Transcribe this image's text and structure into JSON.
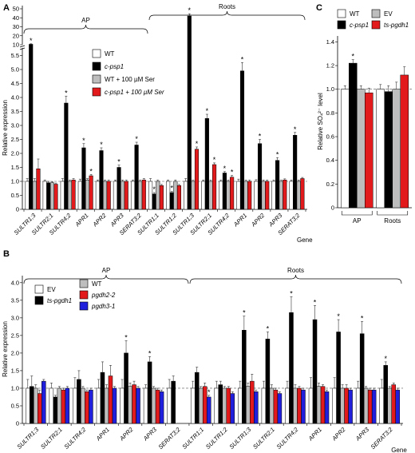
{
  "chart_data": [
    {
      "panel": "A",
      "type": "bar",
      "ylabel": "Relative expression",
      "xlabel": "Gene",
      "y_ticks_lower": [
        "0",
        "0.5",
        "1.0",
        "1.5",
        "2.0",
        "2.5",
        "3.0",
        "3.5",
        "4.0",
        "4.5",
        "5.0",
        "5.5"
      ],
      "y_ticks_upper": [
        "10",
        "20",
        "30",
        "40",
        "50"
      ],
      "y_break": [
        5.6,
        10
      ],
      "groups": [
        {
          "label": "AP",
          "categories": [
            "SULTR1;3",
            "SULTR2;1",
            "SULTR4;2",
            "APR1",
            "APR2",
            "APR3",
            "SERAT3;2"
          ]
        },
        {
          "label": "Roots",
          "categories": [
            "SULTR1;1",
            "SULTR1;2",
            "SULTR1;3",
            "SULTR2;1",
            "SULTR4;2",
            "APR1",
            "APR2",
            "APR3",
            "SERAT3;2"
          ]
        }
      ],
      "series": [
        {
          "name": "WT",
          "color": "#ffffff",
          "values": [
            1.0,
            1.0,
            1.0,
            1.0,
            1.0,
            1.0,
            1.0,
            1.0,
            1.0,
            1.0,
            1.0,
            1.0,
            1.0,
            1.0,
            1.0,
            1.0
          ],
          "errors": [
            0.1,
            0.05,
            0.1,
            0.08,
            0.05,
            0.05,
            0.05,
            0.1,
            0.05,
            0.1,
            0.05,
            0.05,
            0.08,
            0.06,
            0.05,
            0.05
          ]
        },
        {
          "name": "c-psp1",
          "color": "#000000",
          "values": [
            10.5,
            0.95,
            3.8,
            2.2,
            2.1,
            1.5,
            2.3,
            0.55,
            0.6,
            42,
            3.25,
            1.3,
            4.95,
            2.35,
            1.75,
            2.65
          ],
          "errors": [
            0.6,
            0.05,
            0.25,
            0.15,
            0.1,
            0.08,
            0.1,
            0.05,
            0.04,
            2.5,
            0.15,
            0.05,
            0.3,
            0.15,
            0.1,
            0.1
          ],
          "significant": [
            true,
            false,
            true,
            true,
            true,
            true,
            true,
            true,
            true,
            true,
            true,
            true,
            true,
            true,
            true,
            true
          ]
        },
        {
          "name": "WT + 100 µM Ser",
          "color": "#bdbdbd",
          "values": [
            1.0,
            0.95,
            1.0,
            1.05,
            1.0,
            1.0,
            1.0,
            1.0,
            1.0,
            1.0,
            1.0,
            1.0,
            1.0,
            1.0,
            1.0,
            1.0
          ],
          "errors": [
            0.1,
            0.04,
            0.05,
            0.05,
            0.05,
            0.05,
            0.05,
            0.05,
            0.05,
            0.05,
            0.05,
            0.05,
            0.05,
            0.05,
            0.05,
            0.05
          ]
        },
        {
          "name": "c-psp1 + 100 µM Ser",
          "color": "#e31a1c",
          "values": [
            1.45,
            0.9,
            1.05,
            1.2,
            1.0,
            1.0,
            1.05,
            0.85,
            0.85,
            2.15,
            1.6,
            1.15,
            1.0,
            1.0,
            1.05,
            1.1
          ],
          "errors": [
            0.35,
            0.04,
            0.05,
            0.05,
            0.05,
            0.05,
            0.05,
            0.04,
            0.04,
            0.08,
            0.06,
            0.06,
            0.05,
            0.05,
            0.04,
            0.04
          ],
          "significant": [
            false,
            false,
            false,
            true,
            false,
            false,
            false,
            false,
            false,
            true,
            true,
            true,
            false,
            false,
            false,
            false
          ]
        }
      ]
    },
    {
      "panel": "B",
      "type": "bar",
      "ylabel": "Relative expression",
      "xlabel": "Gene",
      "ylim": [
        0,
        4.2
      ],
      "y_ticks": [
        "0",
        "0.5",
        "1.0",
        "1.5",
        "2.0",
        "2.5",
        "3.0",
        "3.5",
        "4.0"
      ],
      "groups": [
        {
          "label": "AP",
          "categories": [
            "SULTR1;3",
            "SULTR2;1",
            "SULTR4;2",
            "APR1",
            "APR2",
            "APR3",
            "SERAT3;2"
          ]
        },
        {
          "label": "Roots",
          "categories": [
            "SULTR1;1",
            "SULTR1;2",
            "SULTR1;3",
            "SULTR2;1",
            "SULTR4;2",
            "APR1",
            "APR2",
            "APR3",
            "SERAT3;2"
          ]
        }
      ],
      "series": [
        {
          "name": "EV",
          "color": "#ffffff",
          "values": [
            1.0,
            1.0,
            1.0,
            1.0,
            1.0,
            1.0,
            1.0,
            1.0,
            1.0,
            1.0,
            1.0,
            1.0,
            1.0,
            1.0,
            1.0,
            1.0
          ],
          "errors": [
            0.25,
            0.15,
            0.3,
            0.25,
            0.25,
            0.1,
            0.25,
            0.2,
            0.2,
            0.2,
            0.2,
            0.2,
            0.3,
            0.3,
            0.2,
            0.25
          ]
        },
        {
          "name": "ts-pgdh1",
          "color": "#000000",
          "values": [
            1.05,
            0.75,
            1.25,
            1.45,
            2.0,
            1.75,
            1.2,
            1.45,
            1.1,
            2.65,
            2.4,
            3.15,
            2.95,
            2.6,
            2.55,
            1.65
          ],
          "errors": [
            0.3,
            0.05,
            0.25,
            0.3,
            0.35,
            0.15,
            0.15,
            0.15,
            0.1,
            0.4,
            0.2,
            0.45,
            0.4,
            0.35,
            0.35,
            0.1
          ],
          "significant": [
            false,
            false,
            false,
            false,
            true,
            true,
            false,
            false,
            false,
            true,
            true,
            true,
            true,
            true,
            true,
            true
          ]
        },
        {
          "name": "WT",
          "color": "#bdbdbd",
          "values": [
            1.0,
            1.0,
            1.0,
            1.0,
            1.05,
            1.0,
            null,
            1.0,
            1.0,
            1.05,
            1.0,
            1.0,
            1.05,
            1.0,
            1.0,
            1.0
          ],
          "errors": [
            0.1,
            0.05,
            0.05,
            0.1,
            0.1,
            0.05,
            0,
            0.05,
            0.05,
            0.1,
            0.1,
            0.1,
            0.1,
            0.1,
            0.05,
            0.05
          ]
        },
        {
          "name": "pgdh2-2",
          "color": "#e31a1c",
          "values": [
            0.85,
            0.95,
            0.9,
            1.35,
            1.1,
            0.95,
            null,
            1.05,
            1.0,
            1.2,
            0.95,
            1.0,
            1.05,
            1.0,
            0.95,
            1.1
          ],
          "errors": [
            0.1,
            0.05,
            0.05,
            0.3,
            0.1,
            0.05,
            0,
            0.1,
            0.05,
            0.2,
            0.05,
            0.05,
            0.05,
            0.1,
            0.05,
            0.05
          ]
        },
        {
          "name": "pgdh3-1",
          "color": "#1f1fdc",
          "values": [
            1.2,
            1.0,
            0.95,
            1.0,
            1.0,
            0.9,
            null,
            0.75,
            0.85,
            0.9,
            0.85,
            0.95,
            0.9,
            0.95,
            0.95,
            0.95
          ],
          "errors": [
            0.05,
            0.05,
            0.05,
            0.05,
            0.05,
            0.05,
            0,
            0.05,
            0.05,
            0.05,
            0.05,
            0.05,
            0.05,
            0.05,
            0.05,
            0.05
          ],
          "significant": [
            false,
            false,
            false,
            false,
            false,
            false,
            false,
            true,
            false,
            false,
            false,
            false,
            false,
            false,
            false,
            false
          ]
        }
      ]
    },
    {
      "panel": "C",
      "type": "bar",
      "ylabel": "Relative SO₄²⁻ level",
      "ylim": [
        0,
        1.45
      ],
      "y_ticks": [
        "0",
        "0.2",
        "0.4",
        "0.6",
        "0.8",
        "1.0",
        "1.2",
        "1.4"
      ],
      "categories": [
        "AP",
        "Roots"
      ],
      "series": [
        {
          "name": "WT",
          "color": "#ffffff",
          "values": [
            1.0,
            1.0
          ],
          "errors": [
            0.03,
            0.04
          ]
        },
        {
          "name": "c-psp1",
          "color": "#000000",
          "values": [
            1.22,
            0.98
          ],
          "errors": [
            0.03,
            0.05
          ],
          "significant": [
            true,
            false
          ]
        },
        {
          "name": "EV",
          "color": "#bdbdbd",
          "values": [
            1.0,
            1.0
          ],
          "errors": [
            0.03,
            0.06
          ]
        },
        {
          "name": "ts-pgdh1",
          "color": "#e31a1c",
          "values": [
            0.97,
            1.12
          ],
          "errors": [
            0.04,
            0.07
          ]
        }
      ]
    }
  ]
}
